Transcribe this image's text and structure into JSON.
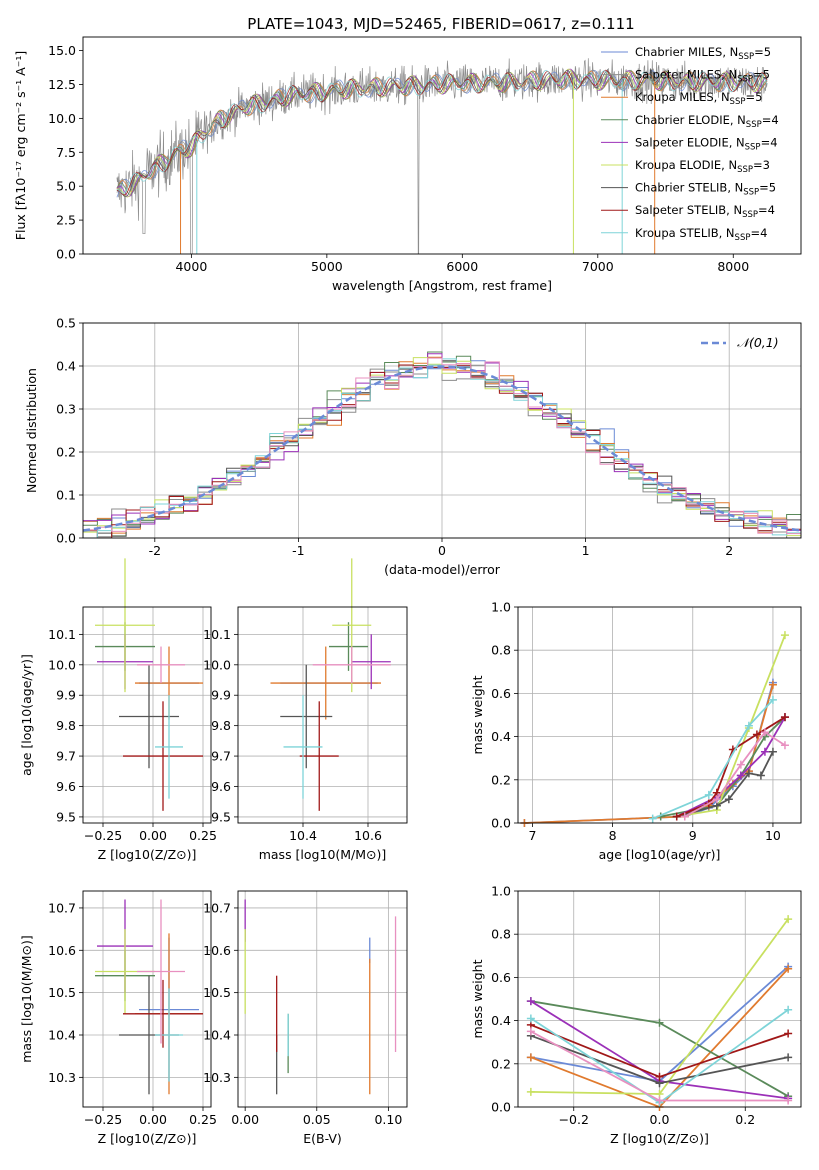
{
  "figure_title": "PLATE=1043, MJD=52465, FIBERID=0617, z=0.111",
  "model_colors": [
    "#6b8ad6",
    "#8c8c8c",
    "#e07a2e",
    "#5a8a5a",
    "#9b30b8",
    "#c8e060",
    "#555555",
    "#a01818",
    "#7ed4d8",
    "#e890c0"
  ],
  "chart_data": [
    {
      "id": "spectrum",
      "type": "line",
      "title": "PLATE=1043, MJD=52465, FIBERID=0617, z=0.111",
      "xlabel": "wavelength [Angstrom, rest frame]",
      "ylabel": "Flux [$f_\\lambda 10^{-17}$ erg cm$^{-2}$ s$^{-1}$ A$^{-1}$]",
      "ylabel_display": "Flux [fλ10⁻¹⁷ erg cm⁻² s⁻¹ A⁻¹]",
      "xlim": [
        3200,
        8500
      ],
      "ylim": [
        0,
        16
      ],
      "xticks": [
        4000,
        5000,
        6000,
        7000,
        8000
      ],
      "yticks": [
        0.0,
        2.5,
        5.0,
        7.5,
        10.0,
        12.5,
        15.0
      ],
      "legend_position": "right",
      "series": [
        {
          "name": "Chabrier MILES, N_SSP=5",
          "display_name": "Chabrier MILES, N",
          "sub": "SSP",
          "suffix": "=5",
          "color": "#6b8ad6"
        },
        {
          "name": "Salpeter MILES, N_SSP=5",
          "display_name": "Salpeter MILES, N",
          "sub": "SSP",
          "suffix": "=5",
          "color": "#8c8c8c"
        },
        {
          "name": "Kroupa MILES, N_SSP=5",
          "display_name": "Kroupa MILES, N",
          "sub": "SSP",
          "suffix": "=5",
          "color": "#e07a2e"
        },
        {
          "name": "Chabrier ELODIE, N_SSP=4",
          "display_name": "Chabrier ELODIE, N",
          "sub": "SSP",
          "suffix": "=4",
          "color": "#5a8a5a"
        },
        {
          "name": "Salpeter ELODIE, N_SSP=4",
          "display_name": "Salpeter ELODIE, N",
          "sub": "SSP",
          "suffix": "=4",
          "color": "#9b30b8"
        },
        {
          "name": "Kroupa ELODIE, N_SSP=3",
          "display_name": "Kroupa ELODIE, N",
          "sub": "SSP",
          "suffix": "=3",
          "color": "#c8e060"
        },
        {
          "name": "Chabrier STELIB, N_SSP=5",
          "display_name": "Chabrier STELIB, N",
          "sub": "SSP",
          "suffix": "=5",
          "color": "#555555"
        },
        {
          "name": "Salpeter STELIB, N_SSP=4",
          "display_name": "Salpeter STELIB, N",
          "sub": "SSP",
          "suffix": "=4",
          "color": "#a01818"
        },
        {
          "name": "Kroupa STELIB, N_SSP=4",
          "display_name": "Kroupa STELIB, N",
          "sub": "SSP",
          "suffix": "=4",
          "color": "#7ed4d8"
        }
      ],
      "continuum": [
        [
          3450,
          4.5
        ],
        [
          3600,
          5.3
        ],
        [
          3700,
          6.2
        ],
        [
          3800,
          6.8
        ],
        [
          3900,
          7.5
        ],
        [
          4000,
          7.9
        ],
        [
          4100,
          9.0
        ],
        [
          4200,
          9.8
        ],
        [
          4300,
          10.3
        ],
        [
          4400,
          10.9
        ],
        [
          4500,
          11.1
        ],
        [
          4600,
          11.3
        ],
        [
          4700,
          11.6
        ],
        [
          4800,
          11.8
        ],
        [
          4900,
          11.9
        ],
        [
          5000,
          12.0
        ],
        [
          5200,
          12.2
        ],
        [
          5400,
          12.3
        ],
        [
          5600,
          12.4
        ],
        [
          5800,
          12.5
        ],
        [
          6000,
          12.6
        ],
        [
          6200,
          12.6
        ],
        [
          6400,
          12.7
        ],
        [
          6600,
          12.8
        ],
        [
          6800,
          12.9
        ],
        [
          7000,
          12.8
        ],
        [
          7200,
          12.8
        ],
        [
          7400,
          12.8
        ],
        [
          7600,
          12.7
        ],
        [
          7800,
          12.7
        ],
        [
          8000,
          12.7
        ],
        [
          8250,
          12.6
        ]
      ]
    },
    {
      "id": "residuals",
      "type": "line",
      "xlabel": "(data-model)/error",
      "ylabel": "Normed distribution",
      "xlim": [
        -2.5,
        2.5
      ],
      "ylim": [
        0,
        0.5
      ],
      "xticks": [
        -2,
        -1,
        0,
        1,
        2
      ],
      "yticks": [
        0.0,
        0.1,
        0.2,
        0.3,
        0.4,
        0.5
      ],
      "grid": true,
      "legend_position": "top-right",
      "reference_curve": {
        "name": "N(0,1)",
        "display_name": "𝒩(0,1)",
        "mean": 0,
        "sigma": 1,
        "color": "#6b8ad6"
      }
    },
    {
      "id": "age_vs_Z",
      "type": "scatter",
      "xlabel": "Z [log10(Z/Z⊙)]",
      "ylabel": "age  [log10(age/yr)]",
      "xlim": [
        -0.35,
        0.29
      ],
      "ylim": [
        9.48,
        10.19
      ],
      "xticks": [
        -0.25,
        0.0,
        0.25
      ],
      "xtick_labels": [
        "−0.25",
        "0.00",
        "0.25"
      ],
      "yticks": [
        9.5,
        9.6,
        9.7,
        9.8,
        9.9,
        10.0,
        10.1
      ],
      "grid": true,
      "points": [
        {
          "color": "#6b8ad6",
          "x": 0.08,
          "xerr": 0.15,
          "y": 9.94,
          "yerr": 0.0
        },
        {
          "color": "#e07a2e",
          "x": 0.08,
          "xerr": 0.17,
          "y": 9.94,
          "yerr": 0.12
        },
        {
          "color": "#5a8a5a",
          "x": -0.14,
          "xerr": 0.15,
          "y": 10.06,
          "yerr": 0.08
        },
        {
          "color": "#9b30b8",
          "x": -0.14,
          "xerr": 0.14,
          "y": 10.01,
          "yerr": 0.09
        },
        {
          "color": "#c8e060",
          "x": -0.14,
          "xerr": 0.15,
          "y": 10.13,
          "yerr": 0.22
        },
        {
          "color": "#555555",
          "x": -0.02,
          "xerr": 0.15,
          "y": 9.83,
          "yerr": 0.17
        },
        {
          "color": "#a01818",
          "x": 0.05,
          "xerr": 0.2,
          "y": 9.7,
          "yerr": 0.18
        },
        {
          "color": "#7ed4d8",
          "x": 0.08,
          "xerr": 0.07,
          "y": 9.73,
          "yerr": 0.17
        },
        {
          "color": "#e890c0",
          "x": 0.04,
          "xerr": 0.12,
          "y": 10.0,
          "yerr": 0.06
        }
      ]
    },
    {
      "id": "age_vs_mass",
      "type": "scatter",
      "xlabel": "mass [log10(M/M⊙)]",
      "ylabel": "",
      "xlim": [
        10.2,
        10.72
      ],
      "ylim": [
        9.48,
        10.19
      ],
      "xticks": [
        10.4,
        10.6
      ],
      "yticks": [
        9.5,
        9.6,
        9.7,
        9.8,
        9.9,
        10.0,
        10.1
      ],
      "grid": true,
      "points": [
        {
          "color": "#6b8ad6",
          "x": 10.48,
          "xerr": 0.15,
          "y": 9.94,
          "yerr": 0.0
        },
        {
          "color": "#e07a2e",
          "x": 10.47,
          "xerr": 0.17,
          "y": 9.94,
          "yerr": 0.12
        },
        {
          "color": "#5a8a5a",
          "x": 10.54,
          "xerr": 0.06,
          "y": 10.06,
          "yerr": 0.08
        },
        {
          "color": "#9b30b8",
          "x": 10.61,
          "xerr": 0.06,
          "y": 10.01,
          "yerr": 0.09
        },
        {
          "color": "#c8e060",
          "x": 10.55,
          "xerr": 0.06,
          "y": 10.13,
          "yerr": 0.22
        },
        {
          "color": "#555555",
          "x": 10.41,
          "xerr": 0.08,
          "y": 9.83,
          "yerr": 0.17
        },
        {
          "color": "#a01818",
          "x": 10.45,
          "xerr": 0.06,
          "y": 9.7,
          "yerr": 0.18
        },
        {
          "color": "#7ed4d8",
          "x": 10.4,
          "xerr": 0.06,
          "y": 9.73,
          "yerr": 0.17
        },
        {
          "color": "#e890c0",
          "x": 10.55,
          "xerr": 0.12,
          "y": 10.0,
          "yerr": 0.06
        }
      ]
    },
    {
      "id": "mass_weight_vs_age",
      "type": "line",
      "xlabel": "age  [log10(age/yr)]",
      "ylabel": "mass weight",
      "xlim": [
        6.82,
        10.35
      ],
      "ylim": [
        0,
        1
      ],
      "xticks": [
        7,
        8,
        9,
        10
      ],
      "yticks": [
        0.0,
        0.2,
        0.4,
        0.6,
        0.8,
        1.0
      ],
      "grid": true,
      "series": [
        {
          "color": "#6b8ad6",
          "points": [
            [
              6.9,
              0.0
            ],
            [
              8.9,
              0.03
            ],
            [
              9.2,
              0.07
            ],
            [
              9.5,
              0.17
            ],
            [
              9.7,
              0.24
            ],
            [
              10.0,
              0.65
            ]
          ]
        },
        {
          "color": "#e07a2e",
          "points": [
            [
              6.9,
              0.0
            ],
            [
              8.9,
              0.03
            ],
            [
              9.2,
              0.08
            ],
            [
              9.5,
              0.18
            ],
            [
              9.7,
              0.24
            ],
            [
              10.0,
              0.64
            ]
          ]
        },
        {
          "color": "#5a8a5a",
          "points": [
            [
              8.6,
              0.03
            ],
            [
              9.3,
              0.08
            ],
            [
              9.6,
              0.22
            ],
            [
              9.9,
              0.4
            ],
            [
              10.15,
              0.49
            ]
          ]
        },
        {
          "color": "#9b30b8",
          "points": [
            [
              8.8,
              0.03
            ],
            [
              9.3,
              0.12
            ],
            [
              9.6,
              0.22
            ],
            [
              9.9,
              0.33
            ],
            [
              10.15,
              0.49
            ]
          ]
        },
        {
          "color": "#c8e060",
          "points": [
            [
              8.8,
              0.03
            ],
            [
              9.3,
              0.06
            ],
            [
              9.7,
              0.44
            ],
            [
              10.15,
              0.87
            ]
          ]
        },
        {
          "color": "#555555",
          "points": [
            [
              8.8,
              0.03
            ],
            [
              9.3,
              0.08
            ],
            [
              9.45,
              0.11
            ],
            [
              9.7,
              0.23
            ],
            [
              9.85,
              0.22
            ],
            [
              10.0,
              0.33
            ]
          ]
        },
        {
          "color": "#a01818",
          "points": [
            [
              8.8,
              0.03
            ],
            [
              9.2,
              0.09
            ],
            [
              9.3,
              0.14
            ],
            [
              9.5,
              0.34
            ],
            [
              9.8,
              0.41
            ],
            [
              10.15,
              0.49
            ]
          ]
        },
        {
          "color": "#7ed4d8",
          "points": [
            [
              8.5,
              0.02
            ],
            [
              9.2,
              0.13
            ],
            [
              9.7,
              0.45
            ],
            [
              10.0,
              0.57
            ]
          ]
        },
        {
          "color": "#e890c0",
          "points": [
            [
              8.9,
              0.03
            ],
            [
              9.3,
              0.11
            ],
            [
              9.6,
              0.27
            ],
            [
              9.9,
              0.42
            ],
            [
              10.15,
              0.36
            ]
          ]
        }
      ]
    },
    {
      "id": "mass_vs_Z",
      "type": "scatter",
      "xlabel": "Z [log10(Z/Z⊙)]",
      "ylabel": "mass [log10(M/M⊙)]",
      "xlim": [
        -0.35,
        0.29
      ],
      "ylim": [
        10.23,
        10.74
      ],
      "xticks": [
        -0.25,
        0.0,
        0.25
      ],
      "xtick_labels": [
        "−0.25",
        "0.00",
        "0.25"
      ],
      "yticks": [
        10.3,
        10.4,
        10.5,
        10.6,
        10.7
      ],
      "grid": true,
      "points": [
        {
          "color": "#6b8ad6",
          "x": 0.08,
          "xerr": 0.15,
          "y": 10.46,
          "yerr": 0.17
        },
        {
          "color": "#e07a2e",
          "x": 0.08,
          "xerr": 0.17,
          "y": 10.45,
          "yerr": 0.19
        },
        {
          "color": "#5a8a5a",
          "x": -0.14,
          "xerr": 0.15,
          "y": 10.54,
          "yerr": 0.06
        },
        {
          "color": "#9b30b8",
          "x": -0.14,
          "xerr": 0.14,
          "y": 10.61,
          "yerr": 0.11
        },
        {
          "color": "#c8e060",
          "x": -0.14,
          "xerr": 0.15,
          "y": 10.55,
          "yerr": 0.1
        },
        {
          "color": "#555555",
          "x": -0.02,
          "xerr": 0.15,
          "y": 10.4,
          "yerr": 0.14
        },
        {
          "color": "#a01818",
          "x": 0.05,
          "xerr": 0.2,
          "y": 10.45,
          "yerr": 0.08
        },
        {
          "color": "#7ed4d8",
          "x": 0.08,
          "xerr": 0.07,
          "y": 10.4,
          "yerr": 0.11
        },
        {
          "color": "#e890c0",
          "x": 0.04,
          "xerr": 0.12,
          "y": 10.55,
          "yerr": 0.17
        }
      ]
    },
    {
      "id": "mass_vs_ebv",
      "type": "scatter",
      "xlabel": "E(B-V)",
      "ylabel": "",
      "xlim": [
        -0.005,
        0.113
      ],
      "ylim": [
        10.23,
        10.74
      ],
      "xticks": [
        0.0,
        0.05,
        0.1
      ],
      "xtick_labels": [
        "0.00",
        "0.05",
        "0.10"
      ],
      "yticks": [
        10.3,
        10.4,
        10.5,
        10.6,
        10.7
      ],
      "grid": true,
      "points": [
        {
          "color": "#6b8ad6",
          "x": 0.087,
          "xerr": 0,
          "y": 10.6,
          "yerr": 0.03
        },
        {
          "color": "#e07a2e",
          "x": 0.087,
          "xerr": 0,
          "y": 10.42,
          "yerr": 0.16
        },
        {
          "color": "#5a8a5a",
          "x": 0.03,
          "xerr": 0,
          "y": 10.38,
          "yerr": 0.07
        },
        {
          "color": "#9b30b8",
          "x": 0.0,
          "xerr": 0,
          "y": 10.67,
          "yerr": 0.05
        },
        {
          "color": "#c8e060",
          "x": 0.0,
          "xerr": 0,
          "y": 10.55,
          "yerr": 0.1
        },
        {
          "color": "#555555",
          "x": 0.022,
          "xerr": 0,
          "y": 10.33,
          "yerr": 0.07
        },
        {
          "color": "#a01818",
          "x": 0.022,
          "xerr": 0,
          "y": 10.45,
          "yerr": 0.09
        },
        {
          "color": "#7ed4d8",
          "x": 0.03,
          "xerr": 0,
          "y": 10.4,
          "yerr": 0.05
        },
        {
          "color": "#e890c0",
          "x": 0.105,
          "xerr": 0,
          "y": 10.52,
          "yerr": 0.16
        }
      ]
    },
    {
      "id": "mass_weight_vs_Z",
      "type": "line",
      "xlabel": "Z [log10(Z/Z⊙)]",
      "ylabel": "mass weight",
      "xlim": [
        -0.33,
        0.33
      ],
      "ylim": [
        0,
        1
      ],
      "xticks": [
        -0.2,
        0.0,
        0.2
      ],
      "xtick_labels": [
        "−0.2",
        "0.0",
        "0.2"
      ],
      "yticks": [
        0.0,
        0.2,
        0.4,
        0.6,
        0.8,
        1.0
      ],
      "grid": true,
      "series": [
        {
          "color": "#6b8ad6",
          "points": [
            [
              -0.3,
              0.23
            ],
            [
              0.0,
              0.12
            ],
            [
              0.3,
              0.65
            ]
          ]
        },
        {
          "color": "#e07a2e",
          "points": [
            [
              -0.3,
              0.23
            ],
            [
              0.0,
              0.0
            ],
            [
              0.3,
              0.64
            ]
          ]
        },
        {
          "color": "#5a8a5a",
          "points": [
            [
              -0.3,
              0.49
            ],
            [
              0.0,
              0.39
            ],
            [
              0.3,
              0.05
            ]
          ]
        },
        {
          "color": "#9b30b8",
          "points": [
            [
              -0.3,
              0.49
            ],
            [
              0.0,
              0.12
            ],
            [
              0.3,
              0.04
            ]
          ]
        },
        {
          "color": "#c8e060",
          "points": [
            [
              -0.3,
              0.07
            ],
            [
              0.0,
              0.06
            ],
            [
              0.3,
              0.87
            ]
          ]
        },
        {
          "color": "#555555",
          "points": [
            [
              -0.3,
              0.33
            ],
            [
              0.0,
              0.11
            ],
            [
              0.3,
              0.23
            ]
          ]
        },
        {
          "color": "#a01818",
          "points": [
            [
              -0.3,
              0.38
            ],
            [
              0.0,
              0.14
            ],
            [
              0.3,
              0.34
            ]
          ]
        },
        {
          "color": "#7ed4d8",
          "points": [
            [
              -0.3,
              0.41
            ],
            [
              0.0,
              0.02
            ],
            [
              0.3,
              0.45
            ]
          ]
        },
        {
          "color": "#e890c0",
          "points": [
            [
              -0.3,
              0.35
            ],
            [
              0.0,
              0.03
            ],
            [
              0.3,
              0.03
            ]
          ]
        }
      ]
    }
  ]
}
